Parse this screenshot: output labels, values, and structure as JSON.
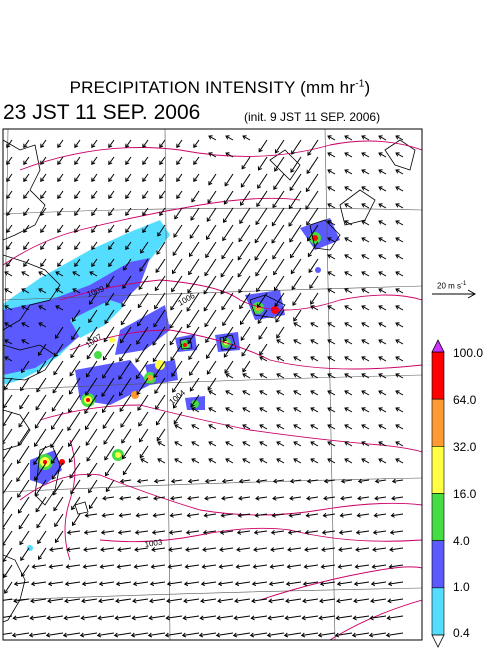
{
  "title": {
    "main": "PRECIPITATION INTENSITY (mm hr",
    "unit_exp": "-1",
    "close": ")"
  },
  "valid_time": "23 JST 11 SEP. 2006",
  "init_time": "(init. 9 JST 11 SEP. 2006)",
  "reference_vector": {
    "label": "20 m s",
    "exp": "-1"
  },
  "colorbar": {
    "levels": [
      "100.0",
      "64.0",
      "32.0",
      "16.0",
      "4.0",
      "1.0",
      "0.4"
    ],
    "colors": [
      "#ff0000",
      "#ff9933",
      "#ffff44",
      "#44dd44",
      "#5a5aff",
      "#55ddff"
    ],
    "top_triangle_color": "#cc33ff"
  },
  "isobar_labels": [
    "1009",
    "1007",
    "1006",
    "1004",
    "1003"
  ],
  "colors": {
    "isobar": "#cc0066",
    "coast": "#000000",
    "grid": "#444444"
  }
}
